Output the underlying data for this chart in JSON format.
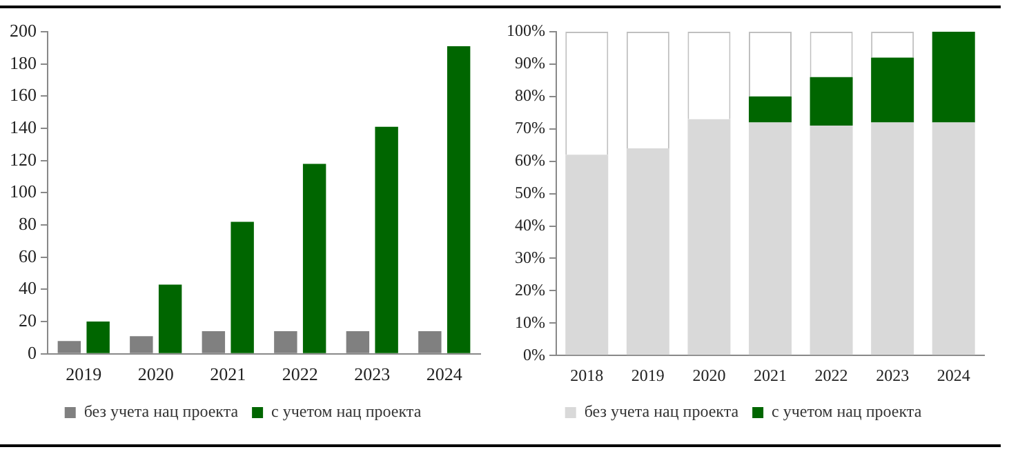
{
  "chart_data": [
    {
      "type": "bar",
      "categories": [
        "2019",
        "2020",
        "2021",
        "2022",
        "2023",
        "2024"
      ],
      "series": [
        {
          "name": "без учета нац проекта",
          "color": "#808080",
          "values": [
            8,
            11,
            14,
            14,
            14,
            14
          ]
        },
        {
          "name": "с учетом нац проекта",
          "color": "#006600",
          "values": [
            20,
            43,
            82,
            118,
            141,
            191
          ]
        }
      ],
      "ylim": [
        0,
        200
      ],
      "yticks": [
        0,
        20,
        40,
        60,
        80,
        100,
        120,
        140,
        160,
        180,
        200
      ],
      "grid": false,
      "legend": "bottom"
    },
    {
      "type": "bar",
      "stacked": true,
      "categories": [
        "2018",
        "2019",
        "2020",
        "2021",
        "2022",
        "2023",
        "2024"
      ],
      "series": [
        {
          "name": "без учета нац проекта",
          "color": "#d9d9d9",
          "values": [
            62,
            64,
            73,
            72,
            71,
            72,
            72
          ]
        },
        {
          "name": "с учетом нац проекта",
          "color": "#006600",
          "values": [
            0,
            0,
            0,
            8,
            15,
            20,
            28
          ]
        },
        {
          "color": "#ffffff",
          "values": [
            38,
            36,
            27,
            20,
            14,
            8,
            0
          ]
        }
      ],
      "ylim": [
        0,
        100
      ],
      "yticks": [
        {
          "value": 0,
          "label": "0%"
        },
        {
          "value": 10,
          "label": "10%"
        },
        {
          "value": 20,
          "label": "20%"
        },
        {
          "value": 30,
          "label": "30%"
        },
        {
          "value": 40,
          "label": "40%"
        },
        {
          "value": 50,
          "label": "50%"
        },
        {
          "value": 60,
          "label": "60%"
        },
        {
          "value": 70,
          "label": "70%"
        },
        {
          "value": 80,
          "label": "80%"
        },
        {
          "value": 90,
          "label": "90%"
        },
        {
          "value": 100,
          "label": "100%"
        }
      ],
      "grid": false,
      "legend": "bottom"
    }
  ]
}
